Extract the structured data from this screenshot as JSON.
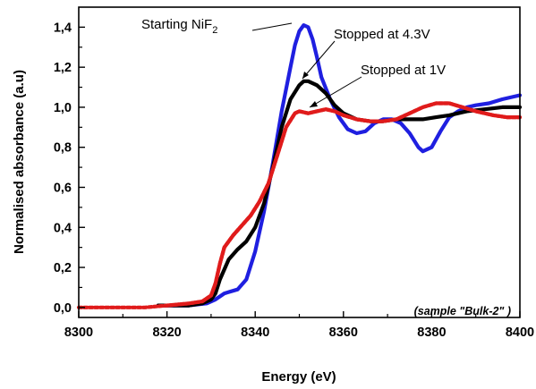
{
  "chart_data": {
    "type": "line",
    "xlabel": "Energy (eV)",
    "ylabel": "Normalised absorbance (a.u)",
    "xlim": [
      8300,
      8400
    ],
    "ylim": [
      -0.05,
      1.5
    ],
    "x_ticks": [
      "8300",
      "8320",
      "8340",
      "8360",
      "8380",
      "8400"
    ],
    "y_ticks": [
      "0,0",
      "0,2",
      "0,4",
      "0,6",
      "0,8",
      "1,0",
      "1,2",
      "1,4"
    ],
    "grid": false,
    "annotation": "(sample \"Bulk-2\" )",
    "series": [
      {
        "name": "Starting NiF",
        "name_subscript": "2",
        "color": "#1f1fe0",
        "x": [
          8318,
          8325,
          8329,
          8331,
          8333,
          8336,
          8338,
          8340,
          8342,
          8344,
          8346,
          8348,
          8349,
          8350,
          8351,
          8352,
          8353,
          8354,
          8355,
          8357,
          8359,
          8361,
          8363,
          8365,
          8367,
          8369,
          8371,
          8373,
          8375,
          8377,
          8378,
          8380,
          8382,
          8384,
          8386,
          8388,
          8390,
          8393,
          8396,
          8400
        ],
        "y": [
          0.01,
          0.01,
          0.02,
          0.04,
          0.07,
          0.09,
          0.14,
          0.28,
          0.48,
          0.72,
          0.98,
          1.2,
          1.31,
          1.38,
          1.41,
          1.4,
          1.34,
          1.25,
          1.15,
          1.04,
          0.95,
          0.89,
          0.87,
          0.88,
          0.92,
          0.94,
          0.94,
          0.92,
          0.87,
          0.8,
          0.78,
          0.8,
          0.88,
          0.95,
          0.98,
          1.0,
          1.01,
          1.02,
          1.04,
          1.06
        ]
      },
      {
        "name": "Stopped at 4.3V",
        "color": "#000000",
        "x": [
          8318,
          8325,
          8328,
          8330,
          8331,
          8332,
          8334,
          8336,
          8338,
          8340,
          8342,
          8344,
          8346,
          8348,
          8350,
          8351,
          8352,
          8354,
          8356,
          8358,
          8360,
          8363,
          8366,
          8369,
          8372,
          8375,
          8378,
          8381,
          8384,
          8388,
          8392,
          8396,
          8400
        ],
        "y": [
          0.01,
          0.01,
          0.02,
          0.04,
          0.07,
          0.14,
          0.24,
          0.29,
          0.33,
          0.4,
          0.52,
          0.7,
          0.9,
          1.04,
          1.11,
          1.13,
          1.13,
          1.11,
          1.07,
          1.01,
          0.97,
          0.94,
          0.93,
          0.93,
          0.94,
          0.94,
          0.94,
          0.95,
          0.96,
          0.98,
          0.99,
          1.0,
          1.0
        ]
      },
      {
        "name": "Stopped at 1V",
        "color": "#e01b1b",
        "x": [
          8300,
          8305,
          8310,
          8315,
          8320,
          8325,
          8328,
          8330,
          8331,
          8332,
          8333,
          8335,
          8337,
          8339,
          8341,
          8343,
          8345,
          8347,
          8349,
          8350,
          8352,
          8354,
          8356,
          8358,
          8360,
          8363,
          8366,
          8369,
          8372,
          8375,
          8378,
          8381,
          8384,
          8387,
          8390,
          8394,
          8397,
          8400
        ],
        "y": [
          0.0,
          0.0,
          0.0,
          0.0,
          0.01,
          0.02,
          0.03,
          0.06,
          0.12,
          0.22,
          0.3,
          0.36,
          0.41,
          0.46,
          0.53,
          0.62,
          0.76,
          0.9,
          0.97,
          0.98,
          0.97,
          0.98,
          0.99,
          0.98,
          0.96,
          0.94,
          0.93,
          0.93,
          0.94,
          0.97,
          1.0,
          1.02,
          1.02,
          1.0,
          0.98,
          0.96,
          0.95,
          0.95
        ]
      }
    ]
  }
}
